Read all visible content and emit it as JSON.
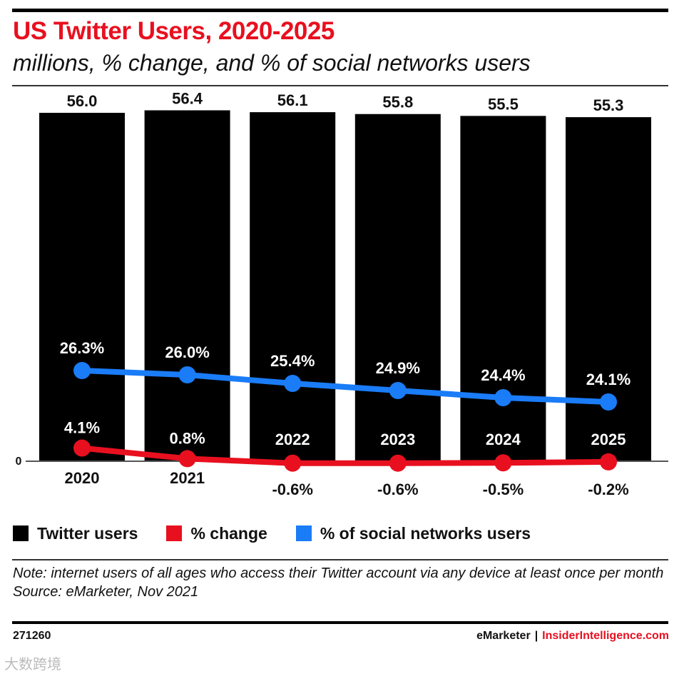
{
  "header": {
    "title": "US Twitter Users, 2020-2025",
    "subtitle": "millions, % change, and % of social networks users"
  },
  "chart_data": {
    "type": "bar",
    "categories": [
      "2020",
      "2021",
      "2022",
      "2023",
      "2024",
      "2025"
    ],
    "series": [
      {
        "name": "Twitter users",
        "kind": "bar",
        "color": "#000000",
        "values": [
          56.0,
          56.4,
          56.1,
          55.8,
          55.5,
          55.3
        ],
        "labels": [
          "56.0",
          "56.4",
          "56.1",
          "55.8",
          "55.5",
          "55.3"
        ]
      },
      {
        "name": "% change",
        "kind": "line",
        "color": "#e8101f",
        "values": [
          4.1,
          0.8,
          -0.6,
          -0.6,
          -0.5,
          -0.2
        ],
        "labels": [
          "4.1%",
          "0.8%",
          "-0.6%",
          "-0.6%",
          "-0.5%",
          "-0.2%"
        ]
      },
      {
        "name": "% of social networks users",
        "kind": "line",
        "color": "#1a7cf7",
        "values": [
          26.3,
          26.0,
          25.4,
          24.9,
          24.4,
          24.1
        ],
        "labels": [
          "26.3%",
          "26.0%",
          "25.4%",
          "24.9%",
          "24.4%",
          "24.1%"
        ]
      }
    ],
    "zero_label": "0",
    "legend_position": "bottom"
  },
  "legend": [
    {
      "label": "Twitter users",
      "color": "#000000"
    },
    {
      "label": "% change",
      "color": "#e8101f"
    },
    {
      "label": "% of social networks users",
      "color": "#1a7cf7"
    }
  ],
  "footer": {
    "note": "Note: internet users of all ages who access their Twitter account via any device at least once per month",
    "source": "Source: eMarketer, Nov 2021",
    "chart_id": "271260",
    "publisher": "eMarketer",
    "separator": "|",
    "brand": "InsiderIntelligence.com"
  },
  "watermark": "大数跨境"
}
